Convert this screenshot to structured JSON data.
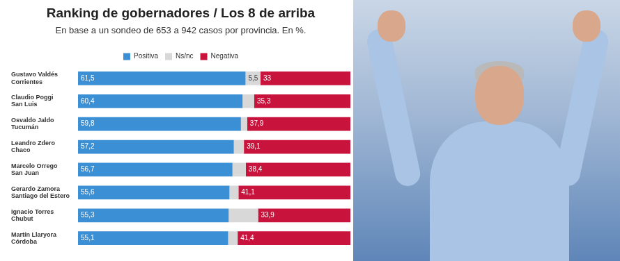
{
  "chart_data": {
    "type": "bar",
    "orientation": "horizontal",
    "stacked": true,
    "data_labels": true,
    "legend": "top",
    "tick_labels": "y",
    "grid": false,
    "title": "Ranking de gobernadores / Los 8 de arriba",
    "subtitle": "En base a un sondeo de 653 a 942 casos por provincia. En %.",
    "categories": [
      [
        "Gustavo Valdés",
        "Corrientes"
      ],
      [
        "Claudio Poggi",
        "San Luis"
      ],
      [
        "Osvaldo Jaldo",
        "Tucumán"
      ],
      [
        "Leandro Zdero",
        "Chaco"
      ],
      [
        "Marcelo Orrego",
        "San Juan"
      ],
      [
        "Gerardo Zamora",
        "Santiago del Estero"
      ],
      [
        "Ignacio Torres",
        "Chubut"
      ],
      [
        "Martín Llaryora",
        "Córdoba"
      ]
    ],
    "xlim": [
      0,
      100
    ],
    "series": [
      {
        "name": "Positiva",
        "color": "#3b8fd4",
        "values": [
          61.5,
          60.4,
          59.8,
          57.2,
          56.7,
          55.6,
          55.3,
          55.1
        ],
        "value_labels": [
          "61,5",
          "60,4",
          "59,8",
          "57,2",
          "56,7",
          "55,6",
          "55,3",
          "55,1"
        ]
      },
      {
        "name": "Ns/nc",
        "color": "#d8d8d8",
        "values": [
          5.5,
          4.3,
          2.3,
          3.7,
          4.9,
          3.3,
          10.8,
          3.5
        ],
        "value_labels": [
          "5,5",
          null,
          null,
          null,
          null,
          null,
          null,
          null
        ]
      },
      {
        "name": "Negativa",
        "color": "#c8143c",
        "values": [
          33,
          35.3,
          37.9,
          39.1,
          38.4,
          41.1,
          33.9,
          41.4
        ],
        "value_labels": [
          "33",
          "35,3",
          "37,9",
          "39,1",
          "38,4",
          "41,1",
          "33,9",
          "41,4"
        ]
      }
    ]
  }
}
